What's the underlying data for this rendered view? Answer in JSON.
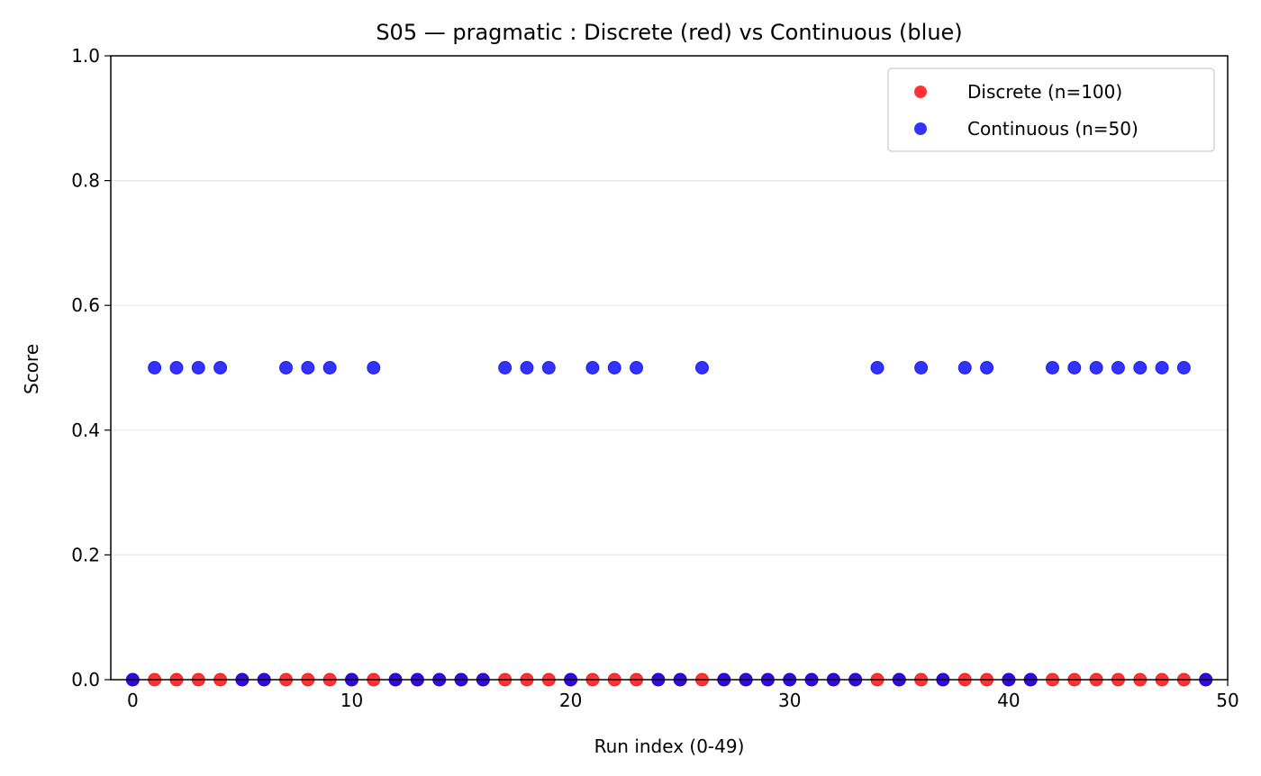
{
  "chart_data": {
    "type": "scatter",
    "title": "S05 — pragmatic : Discrete (red) vs Continuous (blue)",
    "xlabel": "Run index (0-49)",
    "ylabel": "Score",
    "xlim": [
      -1,
      50
    ],
    "ylim": [
      0,
      1
    ],
    "xticks": [
      0,
      10,
      20,
      30,
      40,
      50
    ],
    "yticks": [
      "0.0",
      "0.2",
      "0.4",
      "0.6",
      "0.8",
      "1.0"
    ],
    "grid": "y",
    "legend_position": "top-right",
    "series": [
      {
        "name": "Discrete (n=100)",
        "color": "#ff0000",
        "x": [
          0,
          1,
          2,
          3,
          4,
          5,
          6,
          7,
          8,
          9,
          10,
          11,
          12,
          13,
          14,
          15,
          16,
          17,
          18,
          19,
          20,
          21,
          22,
          23,
          24,
          25,
          26,
          27,
          28,
          29,
          30,
          31,
          32,
          33,
          34,
          35,
          36,
          37,
          38,
          39,
          40,
          41,
          42,
          43,
          44,
          45,
          46,
          47,
          48,
          49
        ],
        "y": [
          0,
          0,
          0,
          0,
          0,
          0,
          0,
          0,
          0,
          0,
          0,
          0,
          0,
          0,
          0,
          0,
          0,
          0,
          0,
          0,
          0,
          0,
          0,
          0,
          0,
          0,
          0,
          0,
          0,
          0,
          0,
          0,
          0,
          0,
          0,
          0,
          0,
          0,
          0,
          0,
          0,
          0,
          0,
          0,
          0,
          0,
          0,
          0,
          0,
          0
        ]
      },
      {
        "name": "Continuous (n=50)",
        "color": "#0000ff",
        "x": [
          0,
          1,
          2,
          3,
          4,
          5,
          6,
          7,
          8,
          9,
          10,
          11,
          12,
          13,
          14,
          15,
          16,
          17,
          18,
          19,
          20,
          21,
          22,
          23,
          24,
          25,
          26,
          27,
          28,
          29,
          30,
          31,
          32,
          33,
          34,
          35,
          36,
          37,
          38,
          39,
          40,
          41,
          42,
          43,
          44,
          45,
          46,
          47,
          48,
          49
        ],
        "y": [
          0,
          0.5,
          0.5,
          0.5,
          0.5,
          0,
          0,
          0.5,
          0.5,
          0.5,
          0,
          0.5,
          0,
          0,
          0,
          0,
          0,
          0.5,
          0.5,
          0.5,
          0,
          0.5,
          0.5,
          0.5,
          0,
          0,
          0.5,
          0,
          0,
          0,
          0,
          0,
          0,
          0,
          0.5,
          0,
          0.5,
          0,
          0.5,
          0.5,
          0,
          0,
          0.5,
          0.5,
          0.5,
          0.5,
          0.5,
          0.5,
          0.5,
          0
        ]
      }
    ]
  }
}
